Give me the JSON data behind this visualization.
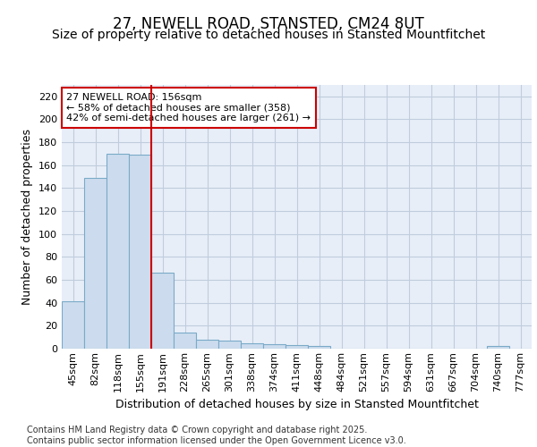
{
  "title": "27, NEWELL ROAD, STANSTED, CM24 8UT",
  "subtitle": "Size of property relative to detached houses in Stansted Mountfitchet",
  "xlabel": "Distribution of detached houses by size in Stansted Mountfitchet",
  "ylabel": "Number of detached properties",
  "bar_color": "#ccdcee",
  "bar_edge_color": "#7aaac8",
  "grid_color": "#c0ccdd",
  "plot_bg_color": "#e8eef8",
  "fig_bg_color": "#ffffff",
  "categories": [
    "45sqm",
    "82sqm",
    "118sqm",
    "155sqm",
    "191sqm",
    "228sqm",
    "265sqm",
    "301sqm",
    "338sqm",
    "374sqm",
    "411sqm",
    "448sqm",
    "484sqm",
    "521sqm",
    "557sqm",
    "594sqm",
    "631sqm",
    "667sqm",
    "704sqm",
    "740sqm",
    "777sqm"
  ],
  "values": [
    41,
    149,
    170,
    169,
    66,
    14,
    8,
    7,
    5,
    4,
    3,
    2,
    0,
    0,
    0,
    0,
    0,
    0,
    0,
    2,
    0
  ],
  "ylim": [
    0,
    230
  ],
  "yticks": [
    0,
    20,
    40,
    60,
    80,
    100,
    120,
    140,
    160,
    180,
    200,
    220
  ],
  "vline_pos": 3.5,
  "vline_color": "#cc0000",
  "annotation_text": "27 NEWELL ROAD: 156sqm\n← 58% of detached houses are smaller (358)\n42% of semi-detached houses are larger (261) →",
  "annotation_box_color": "#ffffff",
  "annotation_border_color": "#cc0000",
  "footer_text": "Contains HM Land Registry data © Crown copyright and database right 2025.\nContains public sector information licensed under the Open Government Licence v3.0.",
  "title_fontsize": 12,
  "subtitle_fontsize": 10,
  "axis_label_fontsize": 9,
  "tick_fontsize": 8,
  "annotation_fontsize": 8,
  "footer_fontsize": 7
}
